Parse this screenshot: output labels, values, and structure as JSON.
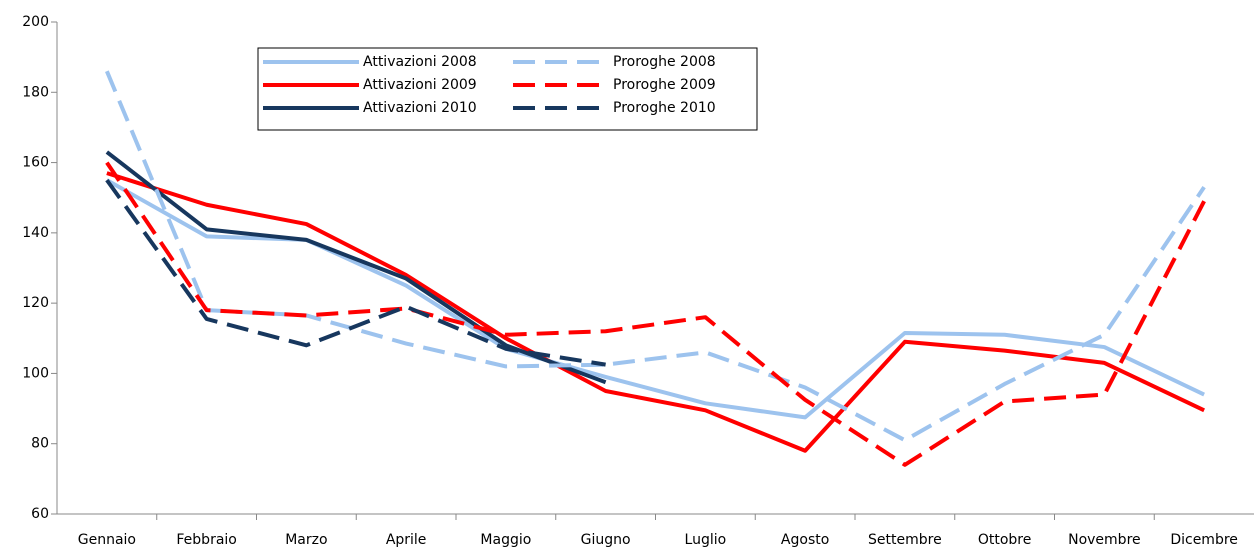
{
  "chart_data": {
    "type": "line",
    "categories": [
      "Gennaio",
      "Febbraio",
      "Marzo",
      "Aprile",
      "Maggio",
      "Giugno",
      "Luglio",
      "Agosto",
      "Settembre",
      "Ottobre",
      "Novembre",
      "Dicembre"
    ],
    "series": [
      {
        "name": "Attivazioni 2008",
        "color": "#9dc3ee",
        "dashed": false,
        "values": [
          155,
          139,
          138,
          125,
          107,
          99,
          91.5,
          87.5,
          111.5,
          111,
          107.5,
          94
        ]
      },
      {
        "name": "Attivazioni 2009",
        "color": "#ff0000",
        "dashed": false,
        "values": [
          157,
          148,
          142.5,
          128,
          110,
          95,
          89.5,
          78,
          109,
          106.5,
          103,
          89.5
        ]
      },
      {
        "name": "Attivazioni 2010",
        "color": "#17375e",
        "dashed": false,
        "values": [
          163,
          141,
          138,
          127,
          108,
          97.5,
          null,
          null,
          null,
          null,
          null,
          null
        ]
      },
      {
        "name": "Proroghe 2008",
        "color": "#9dc3ee",
        "dashed": true,
        "values": [
          186,
          118,
          116.5,
          108.5,
          102,
          102.5,
          106,
          96,
          81,
          97,
          111,
          153
        ]
      },
      {
        "name": "Proroghe 2009",
        "color": "#ff0000",
        "dashed": true,
        "values": [
          160,
          118,
          116.5,
          118.5,
          111,
          112,
          116,
          92.5,
          74,
          92,
          94,
          149
        ]
      },
      {
        "name": "Proroghe 2010",
        "color": "#17375e",
        "dashed": true,
        "values": [
          155,
          115.5,
          108,
          119,
          107,
          102.5,
          null,
          null,
          null,
          null,
          null,
          null
        ]
      }
    ],
    "ylim": [
      60,
      200
    ],
    "yticks": [
      60,
      80,
      100,
      120,
      140,
      160,
      180,
      200
    ],
    "grid": false,
    "legend": "top-left"
  }
}
